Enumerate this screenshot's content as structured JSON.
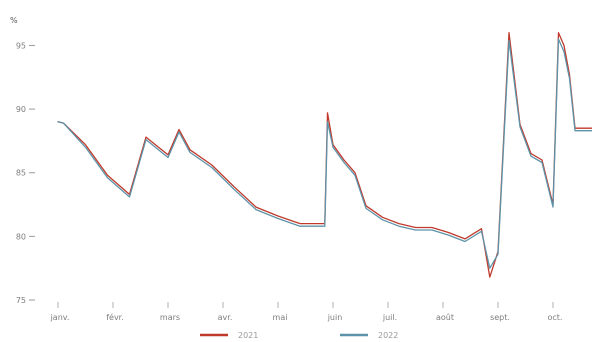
{
  "chart_data": {
    "type": "line",
    "title": "",
    "xlabel": "",
    "ylabel": "",
    "unit_label": "%",
    "categories": [
      "janv.",
      "févr.",
      "mars",
      "avr.",
      "mai",
      "juin",
      "juil.",
      "août",
      "sept.",
      "oct."
    ],
    "ylim": [
      75,
      97
    ],
    "yticks": [
      75,
      80,
      85,
      90,
      95
    ],
    "grid": false,
    "legend_position": "bottom-center",
    "series": [
      {
        "name": "2021",
        "color": "#c0392b",
        "x": [
          0,
          0.1,
          0.5,
          0.9,
          1.3,
          1.6,
          2.0,
          2.2,
          2.4,
          2.8,
          3.2,
          3.6,
          4.0,
          4.4,
          4.85,
          4.9,
          5.0,
          5.2,
          5.4,
          5.6,
          5.9,
          6.2,
          6.5,
          6.8,
          7.1,
          7.4,
          7.7,
          7.85,
          8.0,
          8.2,
          8.4,
          8.6,
          8.8,
          9.0,
          9.1,
          9.2,
          9.3,
          9.4,
          9.6,
          9.72
        ],
        "values": [
          89.0,
          88.9,
          87.2,
          84.8,
          83.3,
          87.8,
          86.4,
          88.4,
          86.8,
          85.6,
          83.9,
          82.3,
          81.6,
          81.0,
          81.0,
          89.7,
          87.2,
          86.0,
          85.0,
          82.4,
          81.5,
          81.0,
          80.7,
          80.7,
          80.3,
          79.8,
          80.6,
          76.8,
          78.8,
          96.0,
          88.8,
          86.5,
          86.0,
          82.5,
          96.0,
          95.0,
          92.7,
          88.5,
          88.5,
          88.5
        ]
      },
      {
        "name": "2022",
        "color": "#5d93a8",
        "x": [
          0,
          0.1,
          0.5,
          0.9,
          1.3,
          1.6,
          2.0,
          2.2,
          2.4,
          2.8,
          3.2,
          3.6,
          4.0,
          4.4,
          4.85,
          4.9,
          5.0,
          5.2,
          5.4,
          5.6,
          5.9,
          6.2,
          6.5,
          6.8,
          7.1,
          7.4,
          7.7,
          7.85,
          8.0,
          8.2,
          8.4,
          8.6,
          8.8,
          9.0,
          9.1,
          9.2,
          9.3,
          9.4,
          9.6,
          9.72
        ],
        "values": [
          89.0,
          88.9,
          87.0,
          84.6,
          83.1,
          87.6,
          86.2,
          88.2,
          86.6,
          85.4,
          83.7,
          82.1,
          81.4,
          80.8,
          80.8,
          89.0,
          87.0,
          85.8,
          84.8,
          82.2,
          81.3,
          80.8,
          80.5,
          80.5,
          80.1,
          79.6,
          80.4,
          77.5,
          78.6,
          95.4,
          88.6,
          86.3,
          85.8,
          82.3,
          95.5,
          94.5,
          92.4,
          88.3,
          88.3,
          88.3
        ]
      }
    ]
  }
}
